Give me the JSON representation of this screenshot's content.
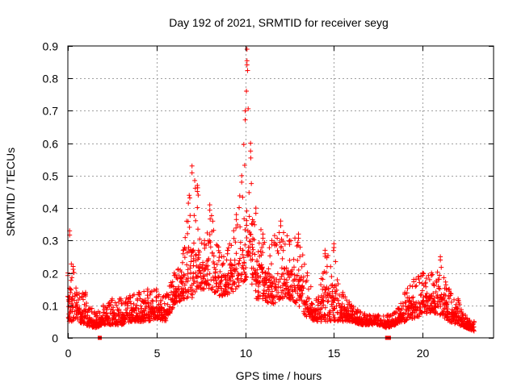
{
  "chart_data": {
    "type": "scatter",
    "title": "Day 192 of 2021, SRMTID for receiver seyg",
    "xlabel": "GPS time / hours",
    "ylabel": "SRMTID / TECUs",
    "xlim": [
      0,
      24
    ],
    "ylim": [
      0,
      0.9
    ],
    "xticks": [
      0,
      5,
      10,
      15,
      20
    ],
    "yticks": [
      0,
      0.1,
      0.2,
      0.3,
      0.4,
      0.5,
      0.6,
      0.7,
      0.8,
      0.9
    ],
    "xtick_labels": [
      "0",
      "5",
      "10",
      "15",
      "20"
    ],
    "ytick_labels": [
      "0",
      "0.1",
      "0.2",
      "0.3",
      "0.4",
      "0.5",
      "0.6",
      "0.7",
      "0.8",
      "0.9"
    ],
    "grid": true,
    "marker": "+",
    "color": "#ff0000",
    "series": [
      {
        "name": "SRMTID",
        "envelope": [
          [
            0.0,
            0.05,
            0.2
          ],
          [
            0.1,
            0.05,
            0.33
          ],
          [
            0.3,
            0.05,
            0.22
          ],
          [
            0.5,
            0.05,
            0.14
          ],
          [
            1.0,
            0.04,
            0.14
          ],
          [
            1.5,
            0.03,
            0.08
          ],
          [
            2.0,
            0.04,
            0.1
          ],
          [
            2.5,
            0.04,
            0.12
          ],
          [
            3.0,
            0.04,
            0.12
          ],
          [
            3.5,
            0.05,
            0.13
          ],
          [
            4.0,
            0.05,
            0.14
          ],
          [
            4.5,
            0.05,
            0.15
          ],
          [
            5.0,
            0.06,
            0.15
          ],
          [
            5.5,
            0.05,
            0.13
          ],
          [
            6.0,
            0.1,
            0.2
          ],
          [
            6.5,
            0.12,
            0.27
          ],
          [
            7.0,
            0.12,
            0.53
          ],
          [
            7.3,
            0.15,
            0.47
          ],
          [
            7.7,
            0.15,
            0.3
          ],
          [
            8.0,
            0.15,
            0.41
          ],
          [
            8.5,
            0.13,
            0.28
          ],
          [
            9.0,
            0.13,
            0.27
          ],
          [
            9.5,
            0.15,
            0.38
          ],
          [
            9.8,
            0.17,
            0.5
          ],
          [
            10.0,
            0.15,
            0.7
          ],
          [
            10.1,
            0.2,
            0.89
          ],
          [
            10.3,
            0.17,
            0.6
          ],
          [
            10.6,
            0.12,
            0.4
          ],
          [
            11.0,
            0.12,
            0.32
          ],
          [
            11.5,
            0.1,
            0.3
          ],
          [
            12.0,
            0.12,
            0.36
          ],
          [
            12.5,
            0.12,
            0.3
          ],
          [
            13.0,
            0.1,
            0.32
          ],
          [
            13.5,
            0.06,
            0.2
          ],
          [
            14.0,
            0.05,
            0.12
          ],
          [
            14.5,
            0.05,
            0.27
          ],
          [
            15.0,
            0.05,
            0.29
          ],
          [
            15.5,
            0.05,
            0.14
          ],
          [
            16.0,
            0.05,
            0.1
          ],
          [
            16.5,
            0.04,
            0.08
          ],
          [
            17.0,
            0.04,
            0.07
          ],
          [
            17.5,
            0.04,
            0.07
          ],
          [
            18.0,
            0.03,
            0.07
          ],
          [
            18.5,
            0.04,
            0.08
          ],
          [
            19.0,
            0.05,
            0.14
          ],
          [
            19.5,
            0.06,
            0.18
          ],
          [
            20.0,
            0.07,
            0.2
          ],
          [
            20.5,
            0.08,
            0.2
          ],
          [
            21.0,
            0.07,
            0.25
          ],
          [
            21.5,
            0.05,
            0.15
          ],
          [
            22.0,
            0.04,
            0.12
          ],
          [
            22.5,
            0.03,
            0.06
          ],
          [
            22.9,
            0.02,
            0.05
          ]
        ],
        "zero_points": [
          1.8,
          18.0,
          18.1
        ]
      }
    ]
  }
}
